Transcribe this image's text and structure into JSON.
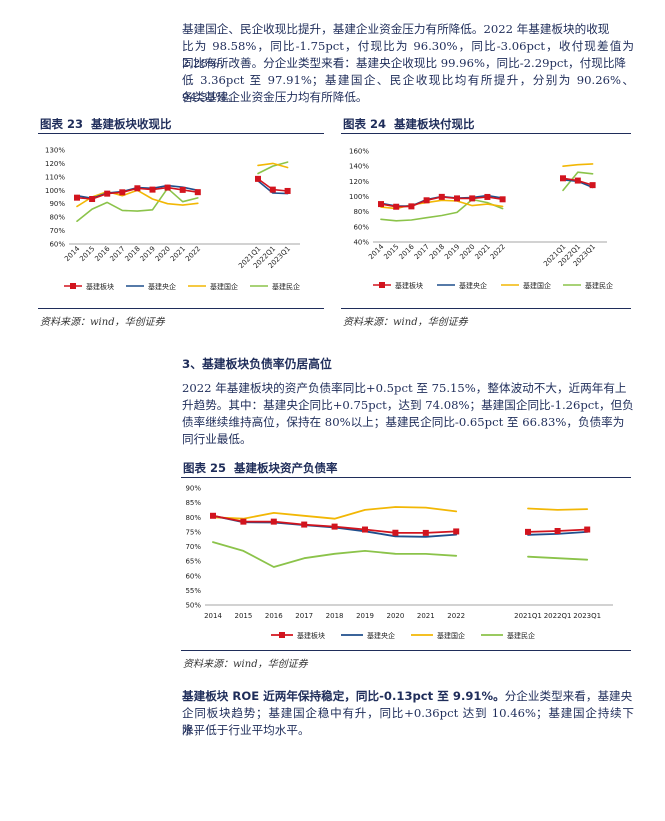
{
  "intro_paragraph": {
    "lines": [
      "基建国企、民企收现比提升，基建企业资金压力有所降低。2022 年基建板块的收现",
      "比为 98.58%，同比-1.75pct，付现比为 96.30%，同比-3.06pct，收付现差值为 2.28%，",
      "同比有所改善。分企业类型来看：基建央企收现比 99.96%，同比-2.29pct，付现比降",
      "低 3.36pct 至 97.91%；基建国企、民企收现比均有所提升，分别为 90.26%、94.33%。",
      "各类基建企业资金压力均有所降低。"
    ]
  },
  "figure23": {
    "label": "图表 23",
    "title": "基建板块收现比",
    "source": "资料来源：wind，华创证券"
  },
  "figure24": {
    "label": "图表 24",
    "title": "基建板块付现比",
    "source": "资料来源：wind，华创证券"
  },
  "section3": {
    "heading": "3、基建板块负债率仍居高位",
    "lines": [
      "2022 年基建板块的资产负债率同比+0.5pct 至 75.15%，整体波动不大，近两年有上",
      "升趋势。其中：基建央企同比+0.75pct，达到 74.08%；基建国企同比-1.26pct，但负",
      "债率继续维持高位，保持在 80%以上；基建民企同比-0.65pct 至 66.83%，负债率为",
      "同行业最低。"
    ]
  },
  "figure25": {
    "label": "图表 25",
    "title": "基建板块资产负债率",
    "source": "资料来源：wind，华创证券"
  },
  "roe_paragraph": {
    "bold_part": "基建板块 ROE 近两年保持稳定，同比-0.13pct 至 9.91%。",
    "lines": [
      "分企业类型来看，基建央",
      "企同板块趋势；基建国企稳中有升，同比+0.36pct 达到 10.46%；基建国企持续下降，",
      "水平低于行业平均水平。"
    ]
  },
  "legend_names": [
    "基建板块",
    "基建央企",
    "基建国企",
    "基建民企"
  ],
  "colors": {
    "sector": "#d2141e",
    "central": "#1f4e8c",
    "state": "#f2b705",
    "private": "#8bc34a",
    "text": "#1f2d5a"
  },
  "chart_data": [
    {
      "type": "line",
      "title": "基建板块收现比",
      "x": [
        "2014",
        "2015",
        "2016",
        "2017",
        "2018",
        "2019",
        "2020",
        "2021",
        "2022",
        "2021Q1",
        "2022Q1",
        "2023Q1"
      ],
      "ylim": [
        60,
        130
      ],
      "yticks": [
        "60%",
        "70%",
        "80%",
        "90%",
        "100%",
        "110%",
        "120%",
        "130%"
      ],
      "grid": false,
      "legend": "bottom",
      "series": [
        {
          "name": "基建板块",
          "values": [
            94.5,
            93.5,
            97.5,
            98.5,
            101.5,
            100.5,
            102.0,
            100.3,
            98.6,
            108.5,
            100.5,
            99.5
          ]
        },
        {
          "name": "基建央企",
          "values": [
            96.0,
            94.0,
            98.0,
            99.0,
            102.0,
            101.5,
            103.5,
            102.3,
            100.0,
            107.0,
            98.0,
            97.5
          ]
        },
        {
          "name": "基建国企",
          "values": [
            88.0,
            95.0,
            99.0,
            96.0,
            100.0,
            93.5,
            90.0,
            89.0,
            90.3,
            118.5,
            120.0,
            117.0
          ]
        },
        {
          "name": "基建民企",
          "values": [
            77.0,
            86.0,
            91.0,
            85.0,
            84.5,
            85.5,
            101.5,
            91.5,
            94.3,
            112.5,
            118.0,
            121.0
          ]
        }
      ]
    },
    {
      "type": "line",
      "title": "基建板块付现比",
      "x": [
        "2014",
        "2015",
        "2016",
        "2017",
        "2018",
        "2019",
        "2020",
        "2021",
        "2022",
        "2021Q1",
        "2022Q1",
        "2023Q1"
      ],
      "ylim": [
        40,
        160
      ],
      "yticks": [
        "40%",
        "60%",
        "80%",
        "100%",
        "120%",
        "140%",
        "160%"
      ],
      "grid": false,
      "legend": "bottom",
      "series": [
        {
          "name": "基建板块",
          "values": [
            90.0,
            86.5,
            87.0,
            95.0,
            99.5,
            97.5,
            97.5,
            99.4,
            96.3,
            124.0,
            121.0,
            115.0
          ]
        },
        {
          "name": "基建央企",
          "values": [
            91.0,
            87.5,
            87.5,
            96.0,
            100.0,
            98.0,
            98.5,
            101.3,
            97.9,
            122.0,
            120.0,
            112.0
          ]
        },
        {
          "name": "基建国企",
          "values": [
            86.0,
            84.0,
            89.0,
            92.0,
            95.0,
            94.0,
            88.0,
            90.0,
            87.0,
            140.0,
            142.0,
            143.0
          ]
        },
        {
          "name": "基建民企",
          "values": [
            70.0,
            68.0,
            69.0,
            72.0,
            75.0,
            79.0,
            96.0,
            92.0,
            84.0,
            108.0,
            132.0,
            130.0
          ]
        }
      ]
    },
    {
      "type": "line",
      "title": "基建板块资产负债率",
      "x": [
        "2014",
        "2015",
        "2016",
        "2017",
        "2018",
        "2019",
        "2020",
        "2021",
        "2022",
        "2021Q1",
        "2022Q1",
        "2023Q1"
      ],
      "ylim": [
        50,
        90
      ],
      "yticks": [
        "50%",
        "55%",
        "60%",
        "65%",
        "70%",
        "75%",
        "80%",
        "85%",
        "90%"
      ],
      "grid": false,
      "legend": "bottom",
      "series": [
        {
          "name": "基建板块",
          "values": [
            80.5,
            78.5,
            78.5,
            77.5,
            76.8,
            75.8,
            74.7,
            74.65,
            75.15,
            75.0,
            75.3,
            75.8
          ]
        },
        {
          "name": "基建央企",
          "values": [
            80.5,
            78.3,
            78.2,
            77.3,
            76.5,
            75.2,
            73.5,
            73.33,
            74.08,
            74.0,
            74.3,
            75.0
          ]
        },
        {
          "name": "基建国企",
          "values": [
            80.0,
            79.5,
            81.5,
            80.5,
            79.5,
            82.5,
            83.5,
            83.3,
            82.0,
            83.0,
            82.5,
            82.8
          ]
        },
        {
          "name": "基建民企",
          "values": [
            71.5,
            68.5,
            63.0,
            66.0,
            67.5,
            68.5,
            67.5,
            67.48,
            66.83,
            66.5,
            66.0,
            65.5
          ]
        }
      ]
    }
  ]
}
